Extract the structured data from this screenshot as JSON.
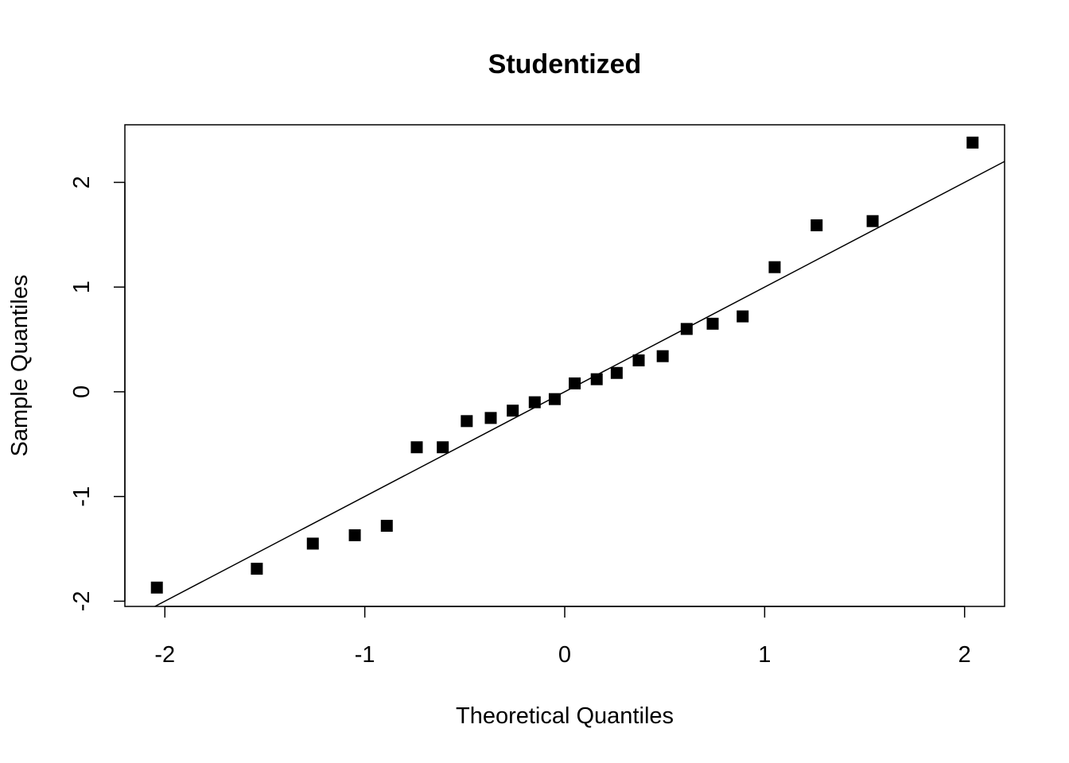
{
  "chart_data": {
    "type": "scatter",
    "title": "Studentized",
    "xlabel": "Theoretical Quantiles",
    "ylabel": "Sample Quantiles",
    "xlim": [
      -2.2,
      2.2
    ],
    "ylim": [
      -2.05,
      2.55
    ],
    "x_ticks": [
      -2,
      -1,
      0,
      1,
      2
    ],
    "y_ticks": [
      -2,
      -1,
      0,
      1,
      2
    ],
    "x_tick_labels": [
      "-2",
      "-1",
      "0",
      "1",
      "2"
    ],
    "y_tick_labels": [
      "-2",
      "-1",
      "0",
      "1",
      "2"
    ],
    "grid": false,
    "marker": "filled-square",
    "marker_color": "#000000",
    "points": [
      {
        "x": -2.04,
        "y": -1.87
      },
      {
        "x": -1.54,
        "y": -1.69
      },
      {
        "x": -1.26,
        "y": -1.45
      },
      {
        "x": -1.05,
        "y": -1.37
      },
      {
        "x": -0.89,
        "y": -1.28
      },
      {
        "x": -0.74,
        "y": -0.53
      },
      {
        "x": -0.61,
        "y": -0.53
      },
      {
        "x": -0.49,
        "y": -0.28
      },
      {
        "x": -0.37,
        "y": -0.25
      },
      {
        "x": -0.26,
        "y": -0.18
      },
      {
        "x": -0.15,
        "y": -0.1
      },
      {
        "x": -0.05,
        "y": -0.07
      },
      {
        "x": 0.05,
        "y": 0.08
      },
      {
        "x": 0.16,
        "y": 0.12
      },
      {
        "x": 0.26,
        "y": 0.18
      },
      {
        "x": 0.37,
        "y": 0.3
      },
      {
        "x": 0.49,
        "y": 0.34
      },
      {
        "x": 0.61,
        "y": 0.6
      },
      {
        "x": 0.74,
        "y": 0.65
      },
      {
        "x": 0.89,
        "y": 0.72
      },
      {
        "x": 1.05,
        "y": 1.19
      },
      {
        "x": 1.26,
        "y": 1.59
      },
      {
        "x": 1.54,
        "y": 1.63
      },
      {
        "x": 2.04,
        "y": 2.38
      }
    ],
    "reference_line": {
      "intercept": 0.0,
      "slope": 1.0
    }
  }
}
